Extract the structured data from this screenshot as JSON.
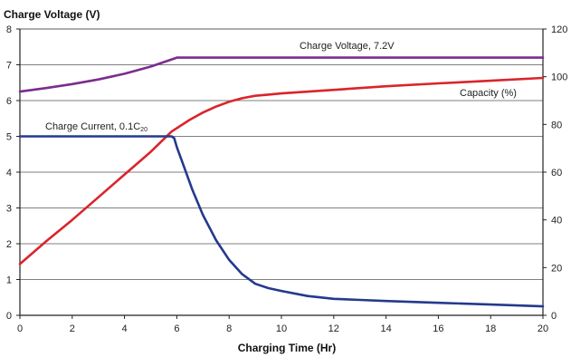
{
  "chart_data": {
    "type": "line",
    "title": "Charge Voltage (V)",
    "xlabel": "Charging Time (Hr)",
    "xlim": [
      0,
      20
    ],
    "ylim_left": [
      0,
      8
    ],
    "ylim_right": [
      0,
      120
    ],
    "x_ticks": [
      "0",
      "2",
      "4",
      "6",
      "8",
      "10",
      "12",
      "14",
      "16",
      "18",
      "20"
    ],
    "y_left_ticks": [
      "0",
      "1",
      "2",
      "3",
      "4",
      "5",
      "6",
      "7",
      "8"
    ],
    "y_right_ticks": [
      "0",
      "20",
      "40",
      "60",
      "80",
      "100",
      "120"
    ],
    "grid": "horizontal",
    "series": [
      {
        "name": "Charge Voltage, 7.2V",
        "axis": "left",
        "color": "#7b2d8e",
        "x": [
          0,
          1,
          2,
          3,
          4,
          5,
          5.8,
          6,
          8,
          10,
          12,
          14,
          16,
          18,
          20
        ],
        "y": [
          6.25,
          6.35,
          6.46,
          6.59,
          6.75,
          6.95,
          7.15,
          7.2,
          7.2,
          7.2,
          7.2,
          7.2,
          7.2,
          7.2,
          7.2
        ]
      },
      {
        "name": "Capacity (%)",
        "axis": "right",
        "color": "#d9252b",
        "x": [
          0,
          1,
          2,
          3,
          4,
          5,
          5.8,
          6.5,
          7,
          7.5,
          8,
          8.5,
          9,
          9.5,
          10,
          12,
          14,
          16,
          18,
          20
        ],
        "y": [
          21.5,
          31,
          40,
          49.5,
          59,
          68.5,
          77,
          82,
          85,
          87.5,
          89.5,
          91,
          92,
          92.5,
          93,
          94.5,
          96,
          97.2,
          98.3,
          99.5
        ]
      },
      {
        "name": "Charge Current, 0.1C20",
        "axis": "left",
        "color": "#243a8c",
        "x": [
          0,
          2,
          4,
          5.8,
          5.9,
          6,
          6.3,
          6.6,
          7,
          7.5,
          8,
          8.5,
          9,
          9.5,
          10,
          11,
          12,
          13,
          14,
          16,
          18,
          20
        ],
        "y": [
          5,
          5,
          5,
          5,
          4.95,
          4.7,
          4.1,
          3.5,
          2.8,
          2.1,
          1.55,
          1.15,
          0.88,
          0.76,
          0.68,
          0.54,
          0.46,
          0.43,
          0.4,
          0.35,
          0.3,
          0.25
        ]
      }
    ],
    "annotations": {
      "voltage_label": "Charge Voltage, 7.2V",
      "capacity_label": "Capacity (%)",
      "current_label": "Charge Current, 0.1C",
      "current_label_sub": "20"
    }
  }
}
